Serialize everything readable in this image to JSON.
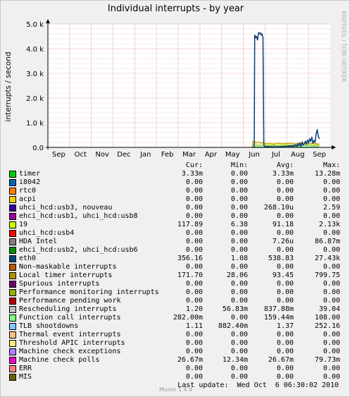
{
  "title": "Individual interrupts - by year",
  "vendor": "RRDTOOL / TOBI OETIKER",
  "chart_data": {
    "type": "line",
    "title": "Individual interrupts - by year",
    "ylabel": "interrupts / second",
    "xlabel": "",
    "x_tick_labels": [
      "Sep",
      "Oct",
      "Nov",
      "Dec",
      "Jan",
      "Feb",
      "Mar",
      "Apr",
      "May",
      "Jun",
      "Jul",
      "Aug",
      "Sep"
    ],
    "y_tick_labels": [
      "0.0",
      "1.0 k",
      "2.0 k",
      "3.0 k",
      "4.0 k",
      "5.0 k"
    ],
    "y_ticks": [
      0,
      1000,
      2000,
      3000,
      4000,
      5000
    ],
    "ylim": [
      0,
      5000
    ],
    "xlim": [
      0,
      13
    ],
    "grid": true,
    "series": [
      {
        "name": "eth0",
        "color": "#0a3e7a",
        "x": [
          9.45,
          9.5,
          9.52,
          9.56,
          9.6,
          9.65,
          9.7,
          9.74,
          9.78,
          9.82,
          9.86,
          9.9,
          9.94,
          9.96,
          10.0,
          10.3,
          10.6,
          10.9,
          11.0,
          11.05,
          11.1,
          11.15,
          11.2,
          11.25,
          11.3,
          11.35,
          11.4,
          11.45,
          11.5,
          11.55,
          11.6,
          11.65,
          11.7,
          11.75,
          11.8,
          11.85,
          11.9,
          11.95,
          12.0,
          12.05,
          12.1,
          12.15,
          12.2,
          12.25,
          12.3,
          12.35,
          12.4,
          12.45,
          12.5
        ],
        "values": [
          0,
          0,
          4550,
          4450,
          4500,
          4350,
          4650,
          4600,
          4650,
          4550,
          4600,
          4450,
          120,
          40,
          30,
          25,
          20,
          40,
          60,
          20,
          70,
          30,
          80,
          25,
          90,
          40,
          110,
          30,
          150,
          60,
          180,
          40,
          220,
          90,
          140,
          250,
          120,
          300,
          180,
          350,
          240,
          420,
          160,
          280,
          200,
          550,
          720,
          450,
          350
        ]
      },
      {
        "name": "Local timer interrupts",
        "color": "#c8a800",
        "x": [
          9.4,
          9.45,
          9.5,
          9.6,
          9.7,
          9.8,
          9.9,
          10.0,
          10.2,
          10.4,
          10.6,
          10.8,
          11.0,
          11.2,
          11.4,
          11.6,
          11.8,
          12.0,
          12.2,
          12.4,
          12.5
        ],
        "values": [
          0,
          250,
          240,
          180,
          220,
          170,
          200,
          150,
          160,
          140,
          170,
          150,
          160,
          170,
          140,
          180,
          170,
          150,
          160,
          140,
          130
        ]
      },
      {
        "name": "Function call interrupts",
        "color": "#90d890",
        "x": [
          9.4,
          9.45,
          9.5,
          9.7,
          9.9,
          10.0,
          10.3,
          10.6,
          10.9,
          11.2,
          11.5,
          11.8,
          12.1,
          12.4,
          12.5
        ],
        "values": [
          0,
          80,
          90,
          70,
          85,
          60,
          65,
          70,
          60,
          75,
          65,
          80,
          70,
          60,
          70
        ]
      },
      {
        "name": "19",
        "color": "#c8e000",
        "x": [
          9.4,
          9.45,
          9.5,
          9.7,
          9.9,
          10.0,
          10.3,
          10.6,
          10.9,
          11.2,
          11.5,
          11.8,
          12.1,
          12.4,
          12.5
        ],
        "values": [
          0,
          100,
          110,
          95,
          100,
          90,
          95,
          90,
          100,
          95,
          90,
          100,
          95,
          90,
          95
        ]
      },
      {
        "name": "timer",
        "color": "#00cc00",
        "x": [
          9.4,
          9.5,
          10.0,
          11.0,
          12.0,
          12.5
        ],
        "values": [
          0,
          5,
          4,
          5,
          4,
          5
        ]
      }
    ]
  },
  "legend": {
    "header": {
      "cur": "Cur:",
      "min": "Min:",
      "avg": "Avg:",
      "max": "Max:"
    },
    "rows": [
      {
        "name": "timer",
        "color": "#00cc00",
        "cur": "3.33m",
        "min": "0.00",
        "avg": "3.33m",
        "max": "13.28m"
      },
      {
        "name": "i8042",
        "color": "#0066b3",
        "cur": "0.00",
        "min": "0.00",
        "avg": "0.00",
        "max": "0.00"
      },
      {
        "name": "rtc0",
        "color": "#ff8000",
        "cur": "0.00",
        "min": "0.00",
        "avg": "0.00",
        "max": "0.00"
      },
      {
        "name": "acpi",
        "color": "#ffcc00",
        "cur": "0.00",
        "min": "0.00",
        "avg": "0.00",
        "max": "0.00"
      },
      {
        "name": "uhci_hcd:usb3, nouveau",
        "color": "#330099",
        "cur": "0.00",
        "min": "0.00",
        "avg": "268.10u",
        "max": "2.59"
      },
      {
        "name": "ehci_hcd:usb1, uhci_hcd:usb8",
        "color": "#990099",
        "cur": "0.00",
        "min": "0.00",
        "avg": "0.00",
        "max": "0.00"
      },
      {
        "name": "19",
        "color": "#ccff00",
        "cur": "117.89",
        "min": "6.38",
        "avg": "91.18",
        "max": "2.13k"
      },
      {
        "name": "uhci_hcd:usb4",
        "color": "#ff0000",
        "cur": "0.00",
        "min": "0.00",
        "avg": "0.00",
        "max": "0.00"
      },
      {
        "name": "HDA Intel",
        "color": "#808080",
        "cur": "0.00",
        "min": "0.00",
        "avg": "7.26u",
        "max": "86.87m"
      },
      {
        "name": "ehci_hcd:usb2, uhci_hcd:usb6",
        "color": "#008f00",
        "cur": "0.00",
        "min": "0.00",
        "avg": "0.00",
        "max": "0.00"
      },
      {
        "name": "eth0",
        "color": "#00487d",
        "cur": "356.16",
        "min": "1.08",
        "avg": "538.83",
        "max": "27.43k"
      },
      {
        "name": "Non-maskable interrupts",
        "color": "#b35a00",
        "cur": "0.00",
        "min": "0.00",
        "avg": "0.00",
        "max": "0.00"
      },
      {
        "name": "Local timer interrupts",
        "color": "#b38f00",
        "cur": "171.70",
        "min": "28.06",
        "avg": "93.45",
        "max": "799.75"
      },
      {
        "name": "Spurious interrupts",
        "color": "#6b006b",
        "cur": "0.00",
        "min": "0.00",
        "avg": "0.00",
        "max": "0.00"
      },
      {
        "name": "Performance monitoring interrupts",
        "color": "#8fb300",
        "cur": "0.00",
        "min": "0.00",
        "avg": "0.00",
        "max": "0.00"
      },
      {
        "name": "Performance pending work",
        "color": "#b30000",
        "cur": "0.00",
        "min": "0.00",
        "avg": "0.00",
        "max": "0.00"
      },
      {
        "name": "Rescheduling interrupts",
        "color": "#bebebe",
        "cur": "1.20",
        "min": "56.83m",
        "avg": "837.88m",
        "max": "39.04"
      },
      {
        "name": "Function call interrupts",
        "color": "#80ff80",
        "cur": "282.00m",
        "min": "0.00",
        "avg": "159.44m",
        "max": "108.00"
      },
      {
        "name": "TLB shootdowns",
        "color": "#80c9ff",
        "cur": "1.11",
        "min": "882.40m",
        "avg": "1.37",
        "max": "252.16"
      },
      {
        "name": "Thermal event interrupts",
        "color": "#ffc080",
        "cur": "0.00",
        "min": "0.00",
        "avg": "0.00",
        "max": "0.00"
      },
      {
        "name": "Threshold APIC interrupts",
        "color": "#ffe680",
        "cur": "0.00",
        "min": "0.00",
        "avg": "0.00",
        "max": "0.00"
      },
      {
        "name": "Machine check exceptions",
        "color": "#aa80ff",
        "cur": "0.00",
        "min": "0.00",
        "avg": "0.00",
        "max": "0.00"
      },
      {
        "name": "Machine check polls",
        "color": "#ee00cc",
        "cur": "26.67m",
        "min": "12.34m",
        "avg": "26.67m",
        "max": "79.73m"
      },
      {
        "name": "ERR",
        "color": "#ff8080",
        "cur": "0.00",
        "min": "0.00",
        "avg": "0.00",
        "max": "0.00"
      },
      {
        "name": "MIS",
        "color": "#666600",
        "cur": "0.00",
        "min": "0.00",
        "avg": "0.00",
        "max": "0.00"
      }
    ]
  },
  "footer": {
    "munin": "Munin 1.4.4",
    "last_update": "Last update:  Wed Oct  6 06:30:02 2010"
  }
}
